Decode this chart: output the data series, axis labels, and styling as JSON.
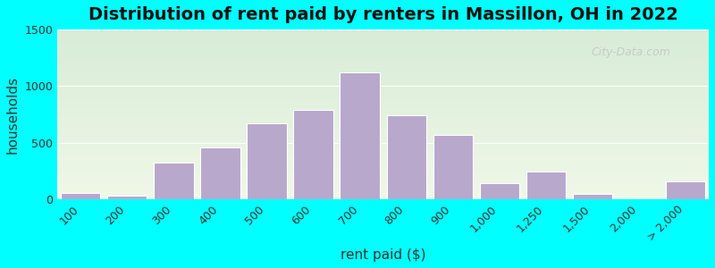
{
  "title": "Distribution of rent paid by renters in Massillon, OH in 2022",
  "xlabel": "rent paid ($)",
  "ylabel": "households",
  "bar_color": "#b8a8cc",
  "bar_edgecolor": "#ffffff",
  "background_top": "#d8ecd8",
  "background_bottom": "#f0f8e8",
  "outer_background": "#00ffff",
  "ylim": [
    0,
    1500
  ],
  "yticks": [
    0,
    500,
    1000,
    1500
  ],
  "categories": [
    "100",
    "200",
    "300",
    "400",
    "500",
    "600",
    "700",
    "800",
    "900",
    "1,000",
    "1,250",
    "1,500",
    "2,000",
    "> 2,000"
  ],
  "values": [
    55,
    30,
    320,
    460,
    670,
    790,
    1120,
    740,
    570,
    140,
    240,
    45,
    0,
    160
  ],
  "bar_positions": [
    0,
    1,
    2,
    3,
    4,
    5,
    6,
    7,
    8,
    9,
    10,
    11,
    12,
    13
  ],
  "title_fontsize": 14,
  "axis_label_fontsize": 11,
  "tick_fontsize": 9,
  "watermark_text": "City-Data.com",
  "watermark_color": "#c0c0c0"
}
